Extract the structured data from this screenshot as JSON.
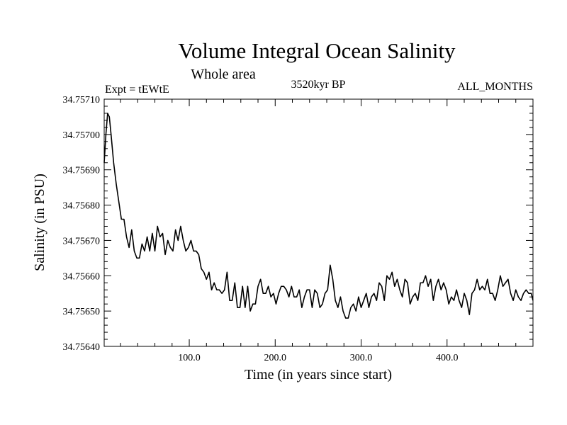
{
  "chart_data": {
    "type": "line",
    "title": "Volume Integral Ocean Salinity",
    "subtitle": "Whole area",
    "annotations": {
      "left": "Expt = tEWtE",
      "center": "3520kyr BP",
      "right": "ALL_MONTHS"
    },
    "xlabel": "Time (in years since start)",
    "ylabel": "Salinity (in PSU)",
    "xlim": [
      1,
      500
    ],
    "ylim": [
      34.7564,
      34.7571
    ],
    "x_ticks": [
      100,
      200,
      300,
      400
    ],
    "x_tick_labels": [
      "100.0",
      "200.0",
      "300.0",
      "400.0"
    ],
    "y_ticks": [
      34.7564,
      34.7565,
      34.7566,
      34.7567,
      34.7568,
      34.7569,
      34.757,
      34.7571
    ],
    "y_tick_labels": [
      "34.75640",
      "34.75650",
      "34.75660",
      "34.75670",
      "34.75680",
      "34.75690",
      "34.75700",
      "34.75710"
    ],
    "grid": false,
    "series": [
      {
        "name": "salinity",
        "color": "#000000",
        "points": [
          [
            1,
            34.75692
          ],
          [
            3,
            34.757
          ],
          [
            5,
            34.75706
          ],
          [
            7,
            34.75705
          ],
          [
            9,
            34.757
          ],
          [
            12,
            34.75692
          ],
          [
            15,
            34.75686
          ],
          [
            18,
            34.75681
          ],
          [
            21,
            34.75676
          ],
          [
            24,
            34.75676
          ],
          [
            27,
            34.75671
          ],
          [
            30,
            34.75668
          ],
          [
            33,
            34.75673
          ],
          [
            36,
            34.75667
          ],
          [
            39,
            34.75665
          ],
          [
            42,
            34.75665
          ],
          [
            45,
            34.75669
          ],
          [
            48,
            34.75667
          ],
          [
            51,
            34.75671
          ],
          [
            54,
            34.75667
          ],
          [
            57,
            34.75672
          ],
          [
            60,
            34.75667
          ],
          [
            63,
            34.75674
          ],
          [
            66,
            34.75671
          ],
          [
            69,
            34.75672
          ],
          [
            72,
            34.75666
          ],
          [
            75,
            34.7567
          ],
          [
            78,
            34.75668
          ],
          [
            81,
            34.75667
          ],
          [
            84,
            34.75673
          ],
          [
            87,
            34.7567
          ],
          [
            90,
            34.75674
          ],
          [
            93,
            34.7567
          ],
          [
            96,
            34.75667
          ],
          [
            99,
            34.75668
          ],
          [
            102,
            34.7567
          ],
          [
            105,
            34.75667
          ],
          [
            108,
            34.75667
          ],
          [
            111,
            34.75666
          ],
          [
            114,
            34.75662
          ],
          [
            117,
            34.75661
          ],
          [
            120,
            34.75659
          ],
          [
            123,
            34.75661
          ],
          [
            126,
            34.75656
          ],
          [
            129,
            34.75658
          ],
          [
            132,
            34.75656
          ],
          [
            135,
            34.75656
          ],
          [
            138,
            34.75655
          ],
          [
            141,
            34.75656
          ],
          [
            144,
            34.75661
          ],
          [
            147,
            34.75653
          ],
          [
            150,
            34.75653
          ],
          [
            153,
            34.75658
          ],
          [
            156,
            34.75651
          ],
          [
            159,
            34.75651
          ],
          [
            162,
            34.75657
          ],
          [
            165,
            34.75651
          ],
          [
            168,
            34.75657
          ],
          [
            171,
            34.7565
          ],
          [
            174,
            34.75652
          ],
          [
            177,
            34.75652
          ],
          [
            180,
            34.75657
          ],
          [
            183,
            34.75659
          ],
          [
            186,
            34.75655
          ],
          [
            189,
            34.75655
          ],
          [
            192,
            34.75657
          ],
          [
            195,
            34.75654
          ],
          [
            198,
            34.75655
          ],
          [
            201,
            34.75652
          ],
          [
            204,
            34.75655
          ],
          [
            207,
            34.75657
          ],
          [
            210,
            34.75657
          ],
          [
            213,
            34.75656
          ],
          [
            216,
            34.75654
          ],
          [
            219,
            34.75657
          ],
          [
            222,
            34.75654
          ],
          [
            225,
            34.75654
          ],
          [
            228,
            34.75656
          ],
          [
            231,
            34.75651
          ],
          [
            234,
            34.75654
          ],
          [
            237,
            34.75656
          ],
          [
            240,
            34.75656
          ],
          [
            243,
            34.75651
          ],
          [
            246,
            34.75656
          ],
          [
            249,
            34.75655
          ],
          [
            252,
            34.75651
          ],
          [
            255,
            34.75652
          ],
          [
            258,
            34.75655
          ],
          [
            261,
            34.75656
          ],
          [
            264,
            34.75663
          ],
          [
            267,
            34.75659
          ],
          [
            270,
            34.75653
          ],
          [
            273,
            34.75651
          ],
          [
            276,
            34.75654
          ],
          [
            279,
            34.7565
          ],
          [
            282,
            34.75648
          ],
          [
            285,
            34.75648
          ],
          [
            288,
            34.75651
          ],
          [
            291,
            34.75652
          ],
          [
            294,
            34.7565
          ],
          [
            297,
            34.75654
          ],
          [
            300,
            34.75651
          ],
          [
            303,
            34.75653
          ],
          [
            306,
            34.75655
          ],
          [
            309,
            34.75651
          ],
          [
            312,
            34.75654
          ],
          [
            315,
            34.75655
          ],
          [
            318,
            34.75653
          ],
          [
            321,
            34.75658
          ],
          [
            324,
            34.75657
          ],
          [
            327,
            34.75653
          ],
          [
            330,
            34.7566
          ],
          [
            333,
            34.75659
          ],
          [
            336,
            34.75661
          ],
          [
            339,
            34.75657
          ],
          [
            342,
            34.75659
          ],
          [
            345,
            34.75656
          ],
          [
            348,
            34.75654
          ],
          [
            351,
            34.75659
          ],
          [
            354,
            34.75658
          ],
          [
            357,
            34.75652
          ],
          [
            360,
            34.75654
          ],
          [
            363,
            34.75655
          ],
          [
            366,
            34.75653
          ],
          [
            369,
            34.75658
          ],
          [
            372,
            34.75658
          ],
          [
            375,
            34.7566
          ],
          [
            378,
            34.75657
          ],
          [
            381,
            34.75659
          ],
          [
            384,
            34.75653
          ],
          [
            387,
            34.75657
          ],
          [
            390,
            34.75659
          ],
          [
            393,
            34.75656
          ],
          [
            396,
            34.75658
          ],
          [
            399,
            34.75656
          ],
          [
            402,
            34.75652
          ],
          [
            405,
            34.75654
          ],
          [
            408,
            34.75653
          ],
          [
            411,
            34.75656
          ],
          [
            414,
            34.75653
          ],
          [
            417,
            34.75651
          ],
          [
            420,
            34.75655
          ],
          [
            423,
            34.75653
          ],
          [
            426,
            34.75649
          ],
          [
            429,
            34.75655
          ],
          [
            432,
            34.75656
          ],
          [
            435,
            34.75659
          ],
          [
            438,
            34.75656
          ],
          [
            441,
            34.75657
          ],
          [
            444,
            34.75656
          ],
          [
            447,
            34.75659
          ],
          [
            450,
            34.75655
          ],
          [
            453,
            34.75655
          ],
          [
            456,
            34.75653
          ],
          [
            459,
            34.75656
          ],
          [
            462,
            34.7566
          ],
          [
            465,
            34.75657
          ],
          [
            468,
            34.75658
          ],
          [
            471,
            34.75659
          ],
          [
            474,
            34.75655
          ],
          [
            477,
            34.75653
          ],
          [
            480,
            34.75656
          ],
          [
            483,
            34.75654
          ],
          [
            486,
            34.75653
          ],
          [
            489,
            34.75655
          ],
          [
            492,
            34.75656
          ],
          [
            495,
            34.75655
          ],
          [
            498,
            34.75655
          ],
          [
            500,
            34.75653
          ]
        ]
      }
    ]
  }
}
